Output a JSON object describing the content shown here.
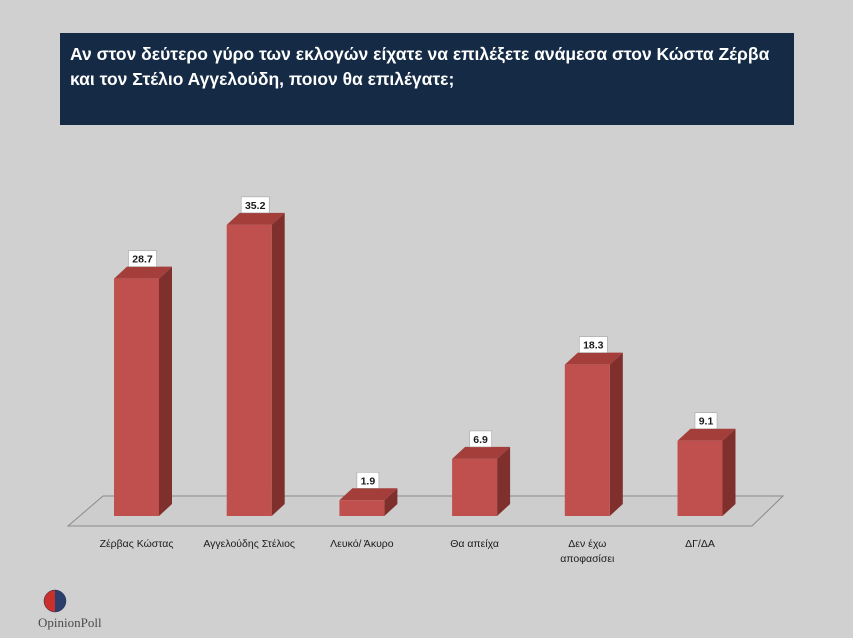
{
  "title": "Αν στον δεύτερο γύρο των εκλογών είχατε να επιλέξετε ανάμεσα στον Κώστα Ζέρβα και τον Στέλιο Αγγελούδη, ποιον θα επιλέγατε;",
  "logo": {
    "text_part1": "Opinion",
    "text_part2": "Poll"
  },
  "colors": {
    "bar_front": "#c0504d",
    "bar_side": "#7f2f2c",
    "bar_top": "#a43e3b",
    "title_bg": "#142a45"
  },
  "chart_data": {
    "type": "bar",
    "title": "Αν στον δεύτερο γύρο των εκλογών είχατε να επιλέξετε ανάμεσα στον Κώστα Ζέρβα και τον Στέλιο Αγγελούδη, ποιον θα επιλέγατε;",
    "categories": [
      "Ζέρβας Κώστας",
      "Αγγελούδης Στέλιος",
      "Λευκό/ Άκυρο",
      "Θα απείχα",
      "Δεν έχω αποφασίσει",
      "ΔΓ/ΔΑ"
    ],
    "values": [
      28.7,
      35.2,
      1.9,
      6.9,
      18.3,
      9.1
    ],
    "value_labels": [
      "28.7",
      "35.2",
      "1.9",
      "6.9",
      "18.3",
      "9.1"
    ],
    "ylim": [
      0,
      40
    ],
    "grid": false,
    "legend": "none",
    "style": "3d"
  }
}
